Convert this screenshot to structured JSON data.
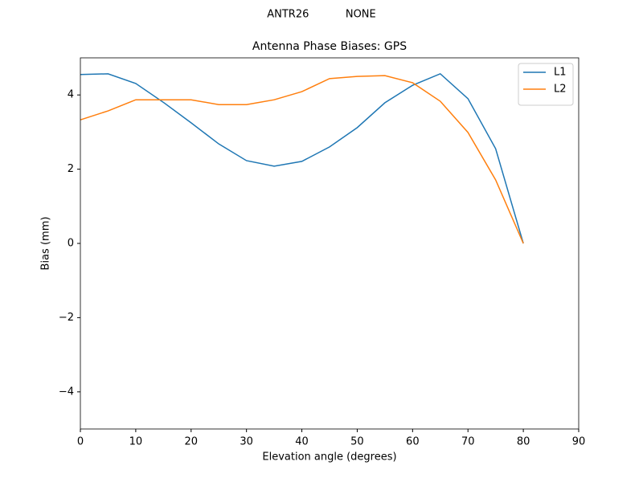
{
  "chart_data": {
    "type": "line",
    "suptitle": "ANTR26           NONE",
    "title": "Antenna Phase Biases: GPS",
    "x_label": "Elevation angle (degrees)",
    "y_label": "Bias (mm)",
    "x": [
      0,
      5,
      10,
      15,
      20,
      25,
      30,
      35,
      40,
      45,
      50,
      55,
      60,
      65,
      70,
      75,
      80
    ],
    "series": [
      {
        "name": "L1",
        "color": "#1f77b4",
        "values": [
          4.55,
          4.57,
          4.31,
          3.8,
          3.25,
          2.68,
          2.23,
          2.08,
          2.21,
          2.6,
          3.12,
          3.79,
          4.26,
          4.57,
          3.9,
          2.55,
          0
        ]
      },
      {
        "name": "L2",
        "color": "#ff7f0e",
        "values": [
          3.33,
          3.57,
          3.87,
          3.87,
          3.87,
          3.74,
          3.74,
          3.87,
          4.09,
          4.44,
          4.5,
          4.52,
          4.33,
          3.83,
          2.99,
          1.71,
          0
        ]
      }
    ],
    "xlim": [
      0,
      90
    ],
    "xticks": [
      0,
      10,
      20,
      30,
      40,
      50,
      60,
      70,
      80,
      90
    ],
    "ylim": [
      -5,
      5
    ],
    "yticks": [
      {
        "value": -4,
        "label": "−4"
      },
      {
        "value": -2,
        "label": "−2"
      },
      0,
      2,
      4
    ],
    "legend": "upper right",
    "grid": false
  }
}
